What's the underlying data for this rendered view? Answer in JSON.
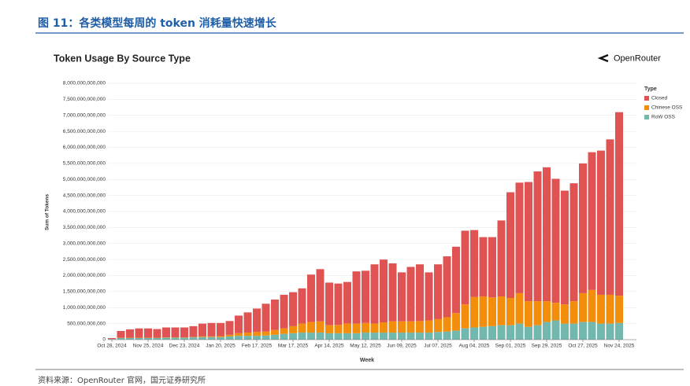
{
  "header": {
    "title": "图 11：各类模型每周的 token 消耗量快速增长"
  },
  "chart_data": {
    "type": "stacked-bar",
    "title": "Token Usage By Source Type",
    "brand": "OpenRouter",
    "x_label": "Week",
    "y_label": "Sum of Tokens",
    "legend_title": "Type",
    "legend_position": "right",
    "categories": [
      "Oct 28, 2024",
      null,
      null,
      null,
      "Nov 25, 2024",
      null,
      null,
      null,
      "Dec 23, 2024",
      null,
      null,
      null,
      "Jan 20, 2025",
      null,
      null,
      null,
      "Feb 17, 2025",
      null,
      null,
      null,
      "Mar 17, 2025",
      null,
      null,
      null,
      "Apr 14, 2025",
      null,
      null,
      null,
      "May 12, 2025",
      null,
      null,
      null,
      "Jun 09, 2025",
      null,
      null,
      null,
      "Jul 07, 2025",
      null,
      null,
      null,
      "Aug 04, 2025",
      null,
      null,
      null,
      "Sep 01, 2025",
      null,
      null,
      null,
      "Sep 29, 2025",
      null,
      null,
      null,
      "Oct 27, 2025",
      null,
      null,
      null,
      "Nov 24, 2025"
    ],
    "series": [
      {
        "name": "Closed",
        "color": "#e05353",
        "values": [
          30000000000.0,
          210000000000.0,
          260000000000.0,
          290000000000.0,
          290000000000.0,
          270000000000.0,
          310000000000.0,
          310000000000.0,
          310000000000.0,
          340000000000.0,
          400000000000.0,
          420000000000.0,
          410000000000.0,
          430000000000.0,
          550000000000.0,
          630000000000.0,
          730000000000.0,
          870000000000.0,
          950000000000.0,
          1050000000000.0,
          1060000000000.0,
          1100000000000.0,
          1480000000000.0,
          1630000000000.0,
          1330000000000.0,
          1290000000000.0,
          1300000000000.0,
          1630000000000.0,
          1630000000000.0,
          1850000000000.0,
          1960000000000.0,
          1810000000000.0,
          1530000000000.0,
          1700000000000.0,
          1770000000000.0,
          1500000000000.0,
          1710000000000.0,
          1900000000000.0,
          2070000000000.0,
          2300000000000.0,
          2090000000000.0,
          1850000000000.0,
          1880000000000.0,
          2370000000000.0,
          3300000000000.0,
          3450000000000.0,
          3720000000000.0,
          4050000000000.0,
          4180000000000.0,
          3870000000000.0,
          3550000000000.0,
          3680000000000.0,
          4050000000000.0,
          4300000000000.0,
          4500000000000.0,
          4850000000000.0,
          5730000000000.0
        ]
      },
      {
        "name": "Chinese OSS",
        "color": "#f28e0c",
        "values": [
          0,
          10000000000.0,
          10000000000.0,
          10000000000.0,
          10000000000.0,
          10000000000.0,
          10000000000.0,
          10000000000.0,
          10000000000.0,
          10000000000.0,
          20000000000.0,
          20000000000.0,
          30000000000.0,
          50000000000.0,
          80000000000.0,
          100000000000.0,
          120000000000.0,
          120000000000.0,
          150000000000.0,
          170000000000.0,
          220000000000.0,
          280000000000.0,
          330000000000.0,
          350000000000.0,
          250000000000.0,
          260000000000.0,
          300000000000.0,
          300000000000.0,
          300000000000.0,
          280000000000.0,
          320000000000.0,
          350000000000.0,
          350000000000.0,
          350000000000.0,
          360000000000.0,
          380000000000.0,
          400000000000.0,
          450000000000.0,
          550000000000.0,
          750000000000.0,
          950000000000.0,
          950000000000.0,
          900000000000.0,
          900000000000.0,
          850000000000.0,
          950000000000.0,
          800000000000.0,
          750000000000.0,
          650000000000.0,
          550000000000.0,
          600000000000.0,
          700000000000.0,
          900000000000.0,
          1000000000000.0,
          900000000000.0,
          900000000000.0,
          850000000000.0
        ]
      },
      {
        "name": "RoW OSS",
        "color": "#72b8ae",
        "values": [
          20000000000.0,
          50000000000.0,
          50000000000.0,
          50000000000.0,
          50000000000.0,
          50000000000.0,
          60000000000.0,
          60000000000.0,
          60000000000.0,
          70000000000.0,
          80000000000.0,
          80000000000.0,
          80000000000.0,
          100000000000.0,
          120000000000.0,
          120000000000.0,
          120000000000.0,
          130000000000.0,
          150000000000.0,
          180000000000.0,
          200000000000.0,
          220000000000.0,
          220000000000.0,
          220000000000.0,
          200000000000.0,
          200000000000.0,
          200000000000.0,
          200000000000.0,
          220000000000.0,
          220000000000.0,
          220000000000.0,
          220000000000.0,
          220000000000.0,
          220000000000.0,
          220000000000.0,
          220000000000.0,
          240000000000.0,
          250000000000.0,
          280000000000.0,
          350000000000.0,
          380000000000.0,
          400000000000.0,
          420000000000.0,
          450000000000.0,
          450000000000.0,
          500000000000.0,
          400000000000.0,
          450000000000.0,
          550000000000.0,
          600000000000.0,
          500000000000.0,
          500000000000.0,
          550000000000.0,
          550000000000.0,
          500000000000.0,
          500000000000.0,
          520000000000.0
        ]
      }
    ],
    "ylim": [
      0,
      8000000000000
    ],
    "yticks": [
      0,
      {
        "value": 500000000000,
        "label": "500,000,000,000"
      },
      {
        "value": 1000000000000,
        "label": "1,000,000,000,000"
      },
      {
        "value": 1500000000000,
        "label": "1,500,000,000,000"
      },
      {
        "value": 2000000000000,
        "label": "2,000,000,000,000"
      },
      {
        "value": 2500000000000,
        "label": "2,500,000,000,000"
      },
      {
        "value": 3000000000000,
        "label": "3,000,000,000,000"
      },
      {
        "value": 3500000000000,
        "label": "3,500,000,000,000"
      },
      {
        "value": 4000000000000,
        "label": "4,000,000,000,000"
      },
      {
        "value": 4500000000000,
        "label": "4,500,000,000,000"
      },
      {
        "value": 5000000000000,
        "label": "5,000,000,000,000"
      },
      {
        "value": 5500000000000,
        "label": "5,500,000,000,000"
      },
      {
        "value": 6000000000000,
        "label": "6,000,000,000,000"
      },
      {
        "value": 6500000000000,
        "label": "6,500,000,000,000"
      },
      {
        "value": 7000000000000,
        "label": "7,000,000,000,000"
      },
      {
        "value": 7500000000000,
        "label": "7,500,000,000,000"
      },
      {
        "value": 8000000000000,
        "label": "8,000,000,000,000"
      }
    ],
    "grid": true
  },
  "source": "资料来源：OpenRouter 官网，国元证券研究所"
}
